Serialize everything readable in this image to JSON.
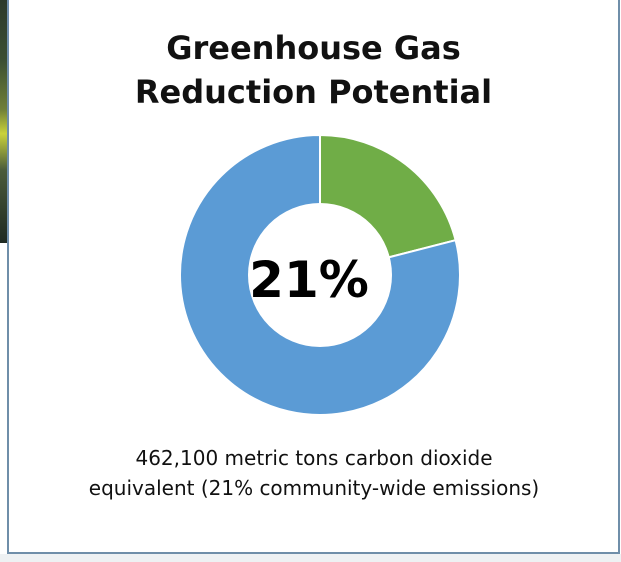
{
  "chart_data": {
    "type": "pie",
    "title_lines": [
      "Greenhouse Gas",
      "Reduction Potential"
    ],
    "center_label": "21%",
    "caption_lines": [
      "462,100 metric tons carbon dioxide",
      "equivalent (21% community-wide emissions)"
    ],
    "slices": [
      {
        "value": 21,
        "color": "#70ad47"
      },
      {
        "value": 79,
        "color": "#5b9bd5"
      }
    ]
  }
}
